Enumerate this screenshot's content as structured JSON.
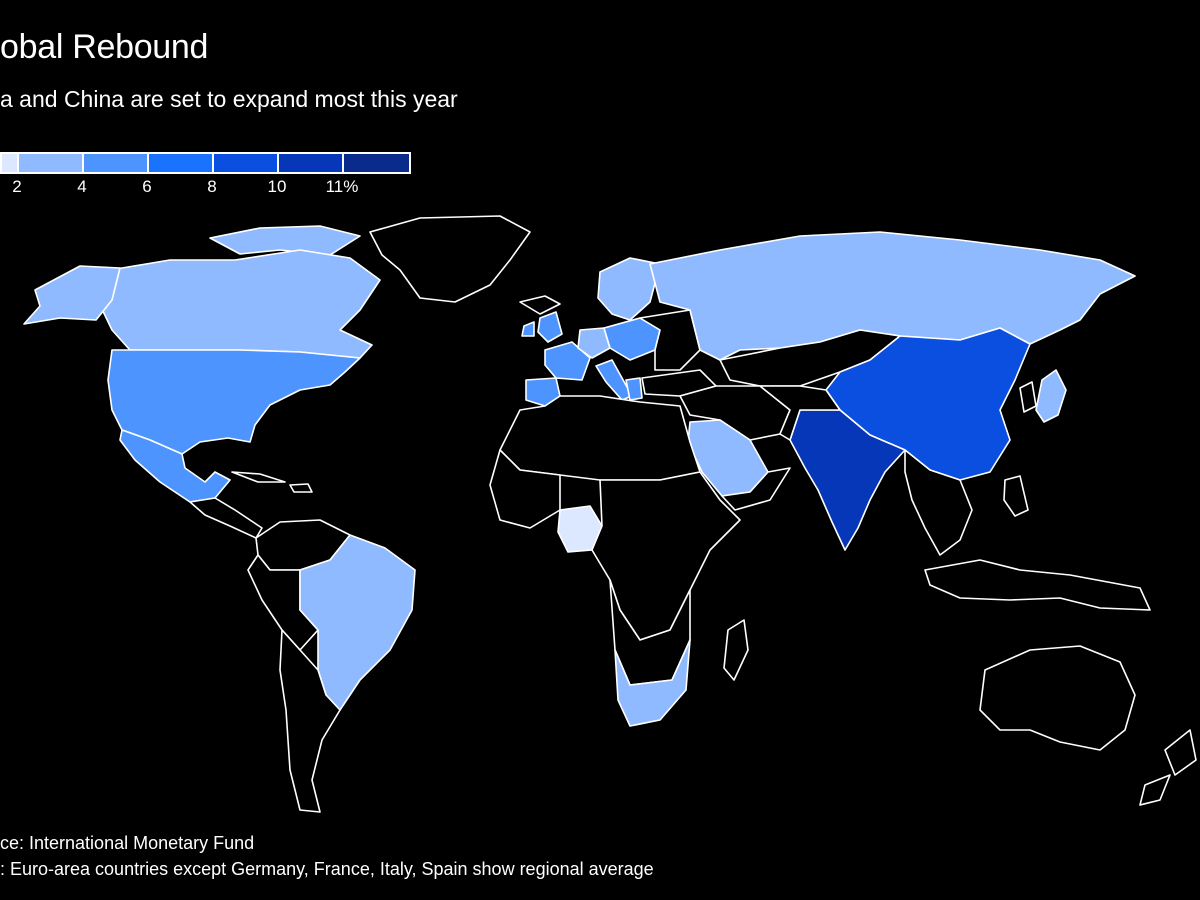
{
  "title": "obal Rebound",
  "subtitle": "a and China are set to expand most this year",
  "legend": {
    "colors": [
      "#dbe8ff",
      "#8fbaff",
      "#4d94ff",
      "#1a73ff",
      "#0a4fe0",
      "#0637b8",
      "#0a2a8c"
    ],
    "ticks": [
      "2",
      "4",
      "6",
      "8",
      "10",
      "11%"
    ]
  },
  "map": {
    "countries": [
      {
        "name": "Canada",
        "color": "#8fbaff"
      },
      {
        "name": "United States",
        "color": "#4d94ff"
      },
      {
        "name": "Mexico",
        "color": "#4d94ff"
      },
      {
        "name": "Brazil",
        "color": "#8fbaff"
      },
      {
        "name": "Russia",
        "color": "#8fbaff"
      },
      {
        "name": "China",
        "color": "#0a4fe0"
      },
      {
        "name": "India",
        "color": "#0637b8"
      },
      {
        "name": "Japan",
        "color": "#8fbaff"
      },
      {
        "name": "Saudi Arabia",
        "color": "#8fbaff"
      },
      {
        "name": "Nigeria",
        "color": "#dbe8ff"
      },
      {
        "name": "South Africa",
        "color": "#8fbaff"
      },
      {
        "name": "United Kingdom",
        "color": "#4d94ff"
      },
      {
        "name": "France",
        "color": "#4d94ff"
      },
      {
        "name": "Spain",
        "color": "#4d94ff"
      },
      {
        "name": "Italy",
        "color": "#4d94ff"
      },
      {
        "name": "Germany",
        "color": "#8fbaff"
      },
      {
        "name": "Euro area",
        "color": "#4d94ff"
      },
      {
        "name": "Sweden",
        "color": "#8fbaff"
      }
    ],
    "background_land": "#000000",
    "border_color": "#ffffff"
  },
  "source": "ce: International Monetary Fund",
  "note": ": Euro-area countries except Germany, France, Italy, Spain show regional average"
}
